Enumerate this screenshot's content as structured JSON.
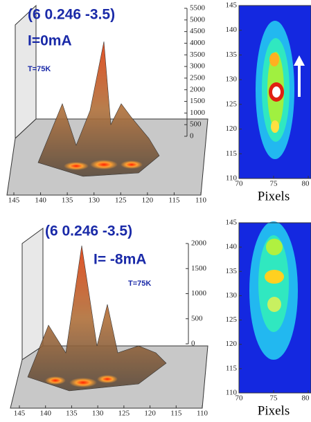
{
  "chart_data": [
    {
      "type": "surface3d",
      "title": "(6 0.246 -3.5)",
      "subtitle": "I=0mA",
      "annotation": "T=75K",
      "zlim": [
        0,
        5500
      ],
      "zticks": [
        0,
        500,
        1000,
        1500,
        2000,
        2500,
        3000,
        3500,
        4000,
        4500,
        5000,
        5500
      ],
      "xlim": [
        145,
        110
      ],
      "xticks": [
        145,
        140,
        135,
        130,
        125,
        120,
        115,
        110
      ]
    },
    {
      "type": "heatmap",
      "xlabel": "Pixels",
      "xlim": [
        70,
        80
      ],
      "xticks": [
        70,
        75,
        80
      ],
      "ylim": [
        110,
        145
      ],
      "yticks": [
        110,
        115,
        120,
        125,
        130,
        135,
        140,
        145
      ]
    },
    {
      "type": "surface3d",
      "title": "(6 0.246 -3.5)",
      "subtitle": "I= -8mA",
      "annotation": "T=75K",
      "zlim": [
        0,
        2000
      ],
      "zticks": [
        0,
        500,
        1000,
        1500,
        2000
      ],
      "xlim": [
        145,
        110
      ],
      "xticks": [
        145,
        140,
        135,
        130,
        125,
        120,
        115,
        110
      ]
    },
    {
      "type": "heatmap",
      "xlabel": "Pixels",
      "xlim": [
        70,
        80
      ],
      "xticks": [
        70,
        75,
        80
      ],
      "ylim": [
        110,
        145
      ],
      "yticks": [
        110,
        115,
        120,
        125,
        130,
        135,
        140,
        145
      ]
    }
  ]
}
